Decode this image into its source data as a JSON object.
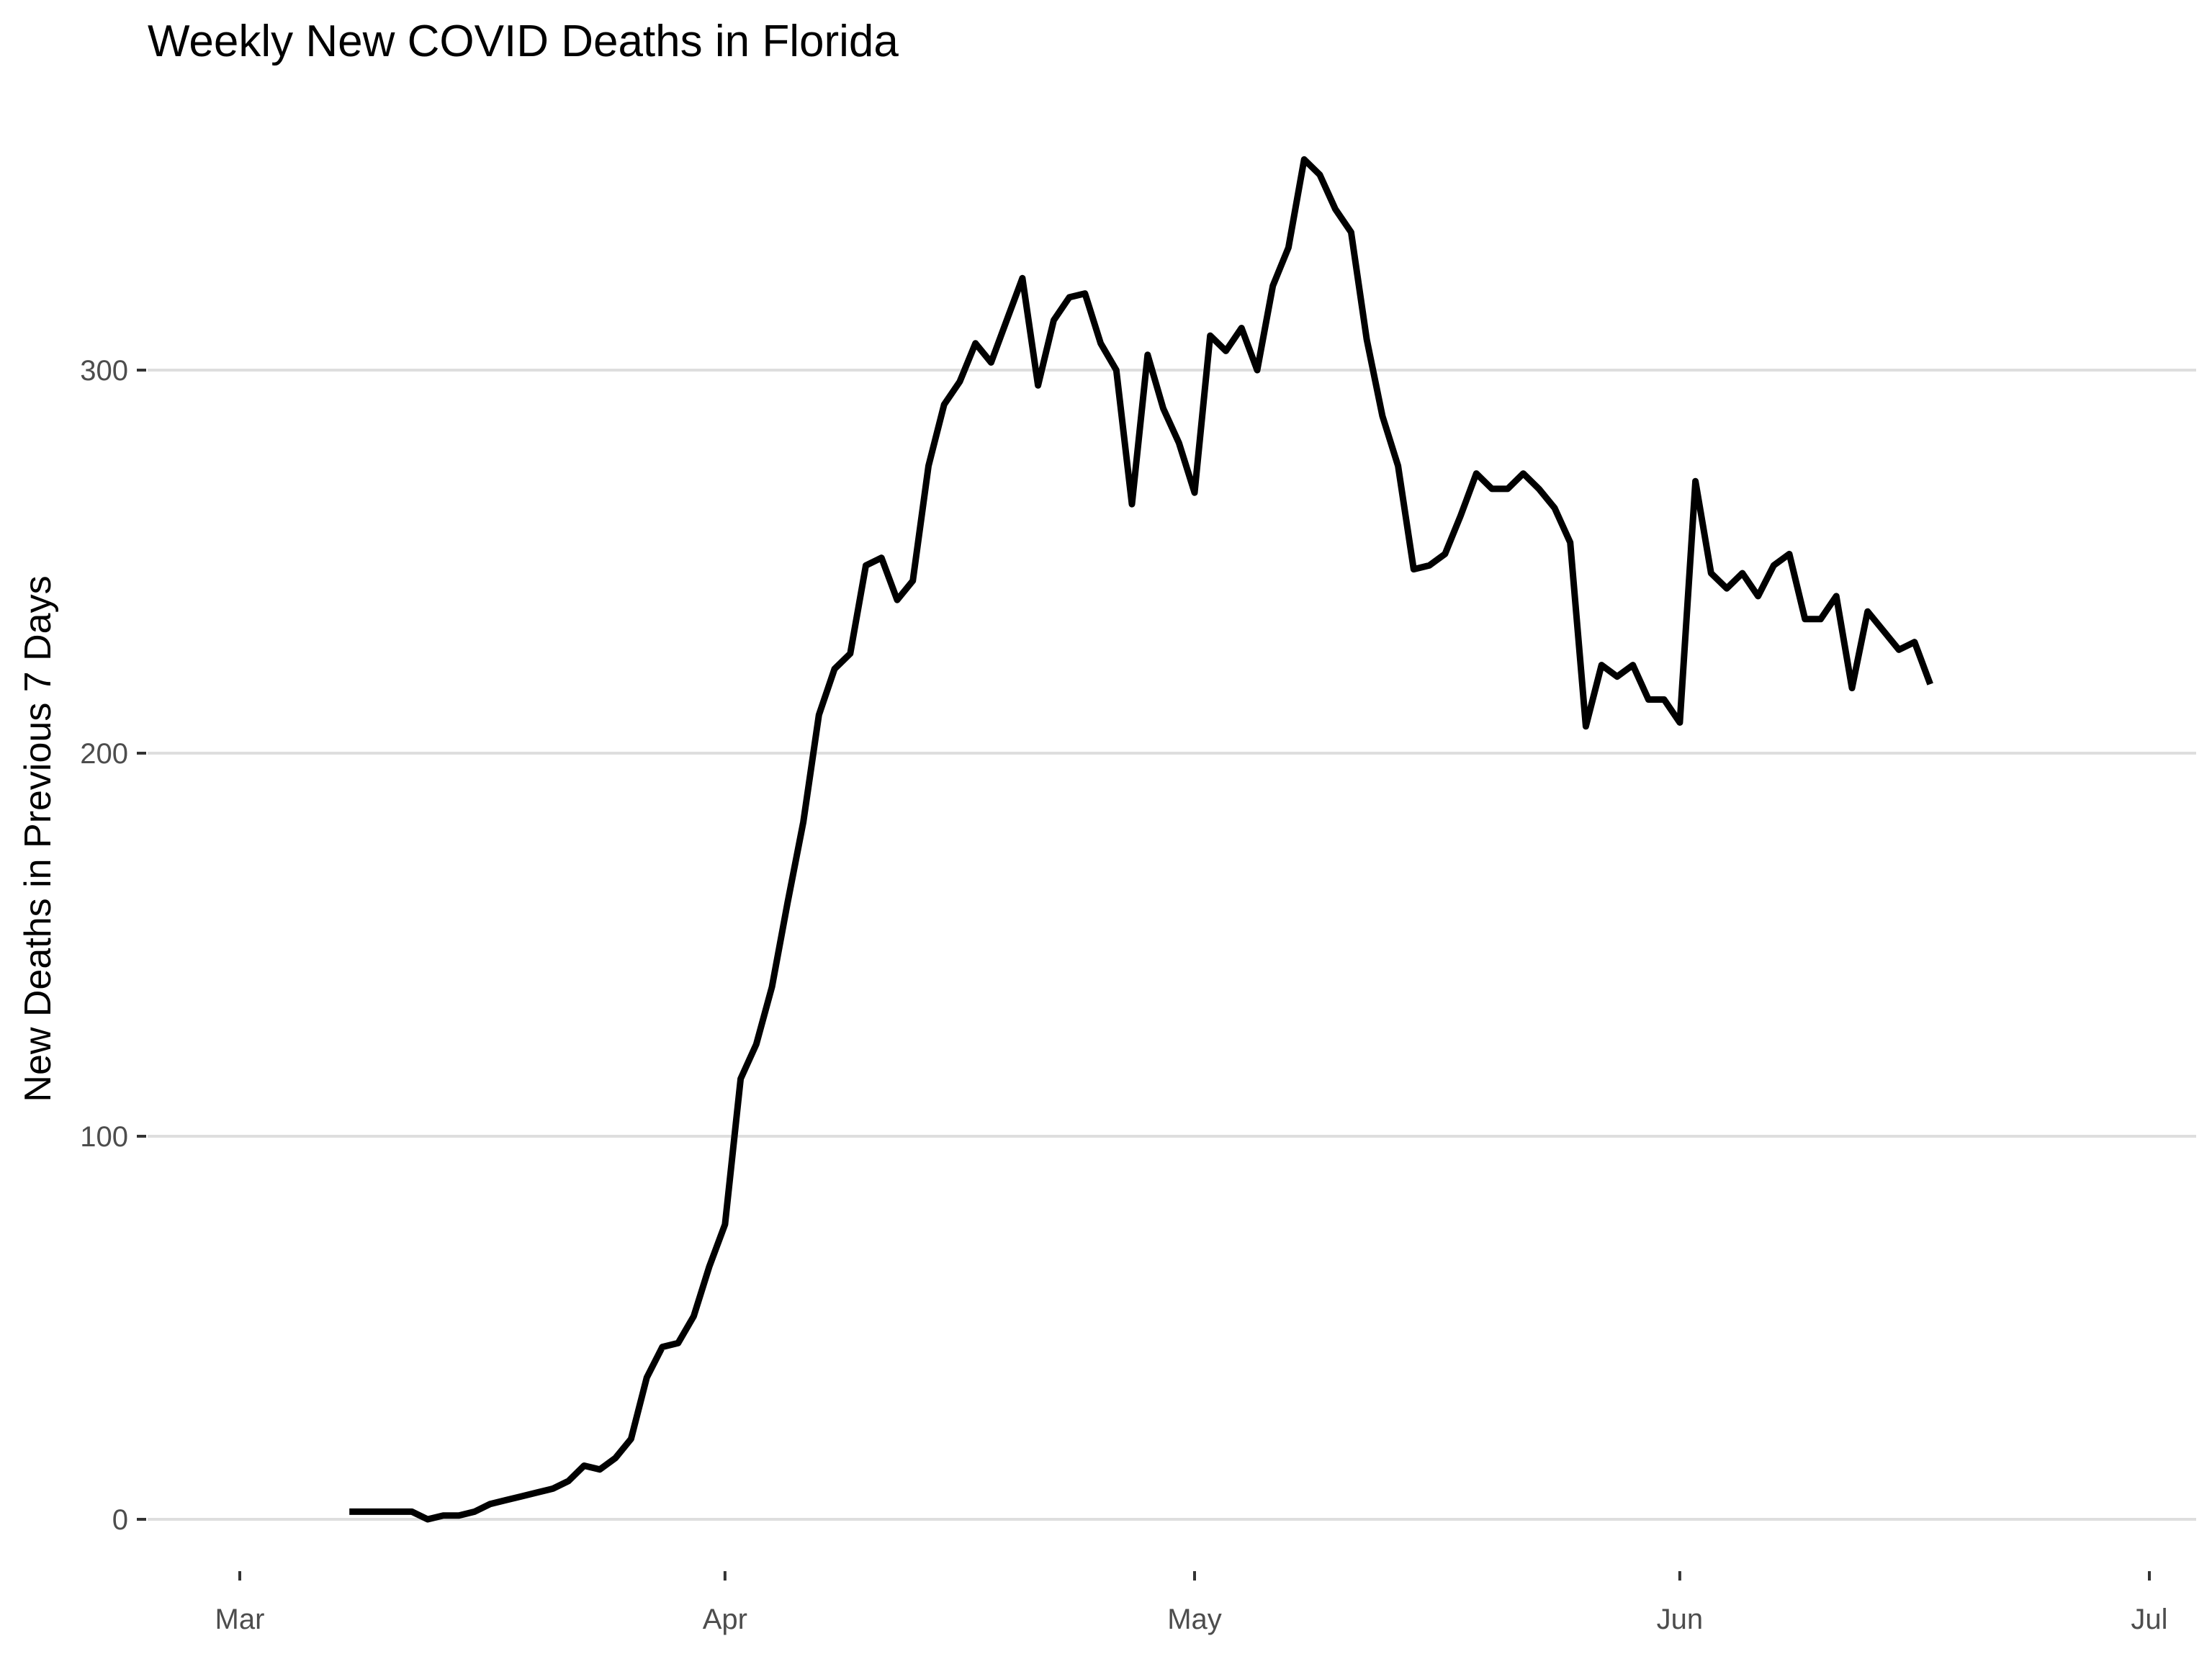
{
  "chart_data": {
    "type": "line",
    "title": "Weekly New COVID Deaths in Florida",
    "xlabel": "",
    "ylabel": "New Deaths in Previous 7 Days",
    "xlim": [
      "2020-02-26",
      "2020-07-03"
    ],
    "ylim": [
      -10,
      355
    ],
    "x_ticks": [
      {
        "date": "2020-03-01",
        "label": "Mar"
      },
      {
        "date": "2020-04-01",
        "label": "Apr"
      },
      {
        "date": "2020-05-01",
        "label": "May"
      },
      {
        "date": "2020-06-01",
        "label": "Jun"
      },
      {
        "date": "2020-07-01",
        "label": "Jul"
      }
    ],
    "y_ticks": [
      0,
      100,
      200,
      300
    ],
    "grid": true,
    "legend": "none",
    "series": [
      {
        "color": "#000000",
        "points": [
          [
            "2020-03-08",
            2
          ],
          [
            "2020-03-09",
            2
          ],
          [
            "2020-03-10",
            2
          ],
          [
            "2020-03-11",
            2
          ],
          [
            "2020-03-12",
            2
          ],
          [
            "2020-03-13",
            0
          ],
          [
            "2020-03-14",
            1
          ],
          [
            "2020-03-15",
            1
          ],
          [
            "2020-03-16",
            2
          ],
          [
            "2020-03-17",
            4
          ],
          [
            "2020-03-18",
            5
          ],
          [
            "2020-03-19",
            6
          ],
          [
            "2020-03-20",
            7
          ],
          [
            "2020-03-21",
            8
          ],
          [
            "2020-03-22",
            10
          ],
          [
            "2020-03-23",
            14
          ],
          [
            "2020-03-24",
            13
          ],
          [
            "2020-03-25",
            16
          ],
          [
            "2020-03-26",
            21
          ],
          [
            "2020-03-27",
            37
          ],
          [
            "2020-03-28",
            45
          ],
          [
            "2020-03-29",
            46
          ],
          [
            "2020-03-30",
            53
          ],
          [
            "2020-03-31",
            66
          ],
          [
            "2020-04-01",
            77
          ],
          [
            "2020-04-02",
            115
          ],
          [
            "2020-04-03",
            124
          ],
          [
            "2020-04-04",
            139
          ],
          [
            "2020-04-05",
            161
          ],
          [
            "2020-04-06",
            182
          ],
          [
            "2020-04-07",
            210
          ],
          [
            "2020-04-08",
            222
          ],
          [
            "2020-04-09",
            226
          ],
          [
            "2020-04-10",
            249
          ],
          [
            "2020-04-11",
            251
          ],
          [
            "2020-04-12",
            240
          ],
          [
            "2020-04-13",
            245
          ],
          [
            "2020-04-14",
            275
          ],
          [
            "2020-04-15",
            291
          ],
          [
            "2020-04-16",
            297
          ],
          [
            "2020-04-17",
            307
          ],
          [
            "2020-04-18",
            302
          ],
          [
            "2020-04-19",
            313
          ],
          [
            "2020-04-20",
            324
          ],
          [
            "2020-04-21",
            296
          ],
          [
            "2020-04-22",
            313
          ],
          [
            "2020-04-23",
            319
          ],
          [
            "2020-04-24",
            320
          ],
          [
            "2020-04-25",
            307
          ],
          [
            "2020-04-26",
            300
          ],
          [
            "2020-04-27",
            265
          ],
          [
            "2020-04-28",
            304
          ],
          [
            "2020-04-29",
            290
          ],
          [
            "2020-04-30",
            281
          ],
          [
            "2020-05-01",
            268
          ],
          [
            "2020-05-02",
            309
          ],
          [
            "2020-05-03",
            305
          ],
          [
            "2020-05-04",
            311
          ],
          [
            "2020-05-05",
            300
          ],
          [
            "2020-05-06",
            322
          ],
          [
            "2020-05-07",
            332
          ],
          [
            "2020-05-08",
            355
          ],
          [
            "2020-05-09",
            351
          ],
          [
            "2020-05-10",
            342
          ],
          [
            "2020-05-11",
            336
          ],
          [
            "2020-05-12",
            308
          ],
          [
            "2020-05-13",
            288
          ],
          [
            "2020-05-14",
            275
          ],
          [
            "2020-05-15",
            248
          ],
          [
            "2020-05-16",
            249
          ],
          [
            "2020-05-17",
            252
          ],
          [
            "2020-05-18",
            262
          ],
          [
            "2020-05-19",
            273
          ],
          [
            "2020-05-20",
            269
          ],
          [
            "2020-05-21",
            269
          ],
          [
            "2020-05-22",
            273
          ],
          [
            "2020-05-23",
            269
          ],
          [
            "2020-05-24",
            264
          ],
          [
            "2020-05-25",
            255
          ],
          [
            "2020-05-26",
            207
          ],
          [
            "2020-05-27",
            223
          ],
          [
            "2020-05-28",
            220
          ],
          [
            "2020-05-29",
            223
          ],
          [
            "2020-05-30",
            214
          ],
          [
            "2020-05-31",
            214
          ],
          [
            "2020-06-01",
            208
          ],
          [
            "2020-06-02",
            271
          ],
          [
            "2020-06-03",
            247
          ],
          [
            "2020-06-04",
            243
          ],
          [
            "2020-06-05",
            247
          ],
          [
            "2020-06-06",
            241
          ],
          [
            "2020-06-07",
            249
          ],
          [
            "2020-06-08",
            252
          ],
          [
            "2020-06-09",
            235
          ],
          [
            "2020-06-10",
            235
          ],
          [
            "2020-06-11",
            241
          ],
          [
            "2020-06-12",
            217
          ],
          [
            "2020-06-13",
            237
          ],
          [
            "2020-06-14",
            232
          ],
          [
            "2020-06-15",
            227
          ],
          [
            "2020-06-16",
            229
          ],
          [
            "2020-06-17",
            218
          ]
        ]
      }
    ]
  }
}
